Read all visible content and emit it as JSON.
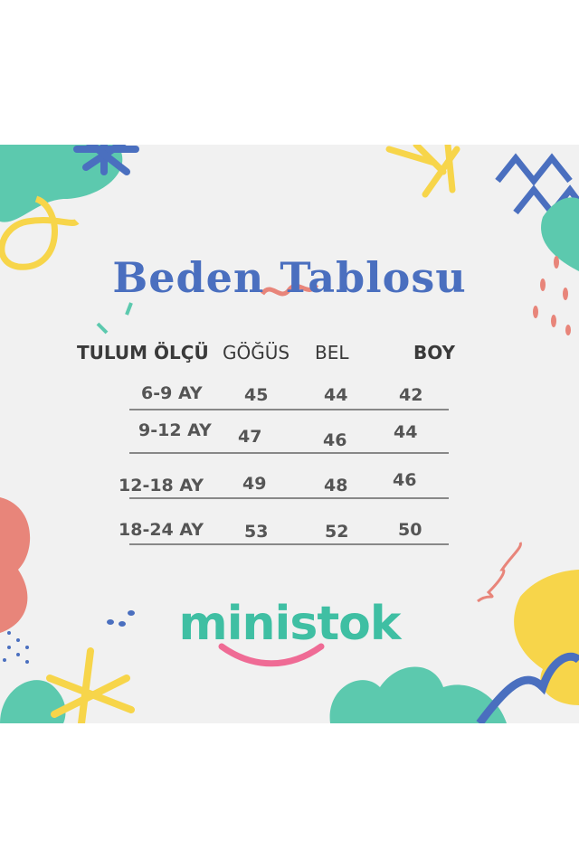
{
  "title": "Beden Tablosu",
  "table": {
    "headers": [
      "TULUM ÖLÇÜ",
      "GÖĞÜS",
      "BEL",
      "BOY"
    ],
    "rows": [
      [
        "6-9 AY",
        "45",
        "44",
        "42"
      ],
      [
        "9-12 AY",
        "47",
        "46",
        "44"
      ],
      [
        "12-18 AY",
        "49",
        "48",
        "46"
      ],
      [
        "18-24 AY",
        "53",
        "52",
        "50"
      ]
    ]
  },
  "logo": "ministok",
  "colors": {
    "background": "#f1f1f1",
    "title": "#4a6fbf",
    "teal": "#5cc9ae",
    "yellow": "#f7d54a",
    "coral": "#e8857a",
    "blue": "#4a6fbf"
  }
}
